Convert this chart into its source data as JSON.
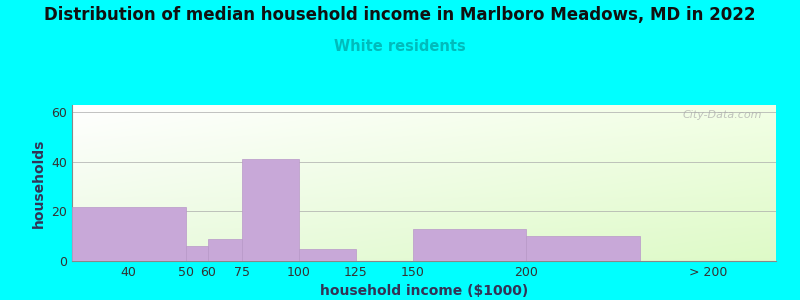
{
  "title": "Distribution of median household income in Marlboro Meadows, MD in 2022",
  "subtitle": "White residents",
  "subtitle_color": "#00bbbb",
  "xlabel": "household income ($1000)",
  "ylabel": "households",
  "background_color": "#00ffff",
  "bar_color": "#c8a8d8",
  "bar_edge_color": "#b898c8",
  "bins": [
    0,
    50,
    60,
    75,
    100,
    125,
    150,
    200,
    250,
    310
  ],
  "bar_heights": [
    22,
    6,
    9,
    41,
    5,
    0,
    13,
    10,
    0
  ],
  "xtick_positions": [
    25,
    50,
    60,
    75,
    100,
    125,
    150,
    200,
    280
  ],
  "xtick_labels": [
    "40",
    "50",
    "60",
    "75",
    "100",
    "125",
    "150",
    "200",
    "> 200"
  ],
  "ytick_positions": [
    0,
    20,
    40,
    60
  ],
  "ytick_labels": [
    "0",
    "20",
    "40",
    "60"
  ],
  "ylim": [
    0,
    63
  ],
  "xlim": [
    0,
    310
  ],
  "title_fontsize": 12,
  "subtitle_fontsize": 10.5,
  "axis_label_fontsize": 10,
  "watermark": "City-Data.com"
}
